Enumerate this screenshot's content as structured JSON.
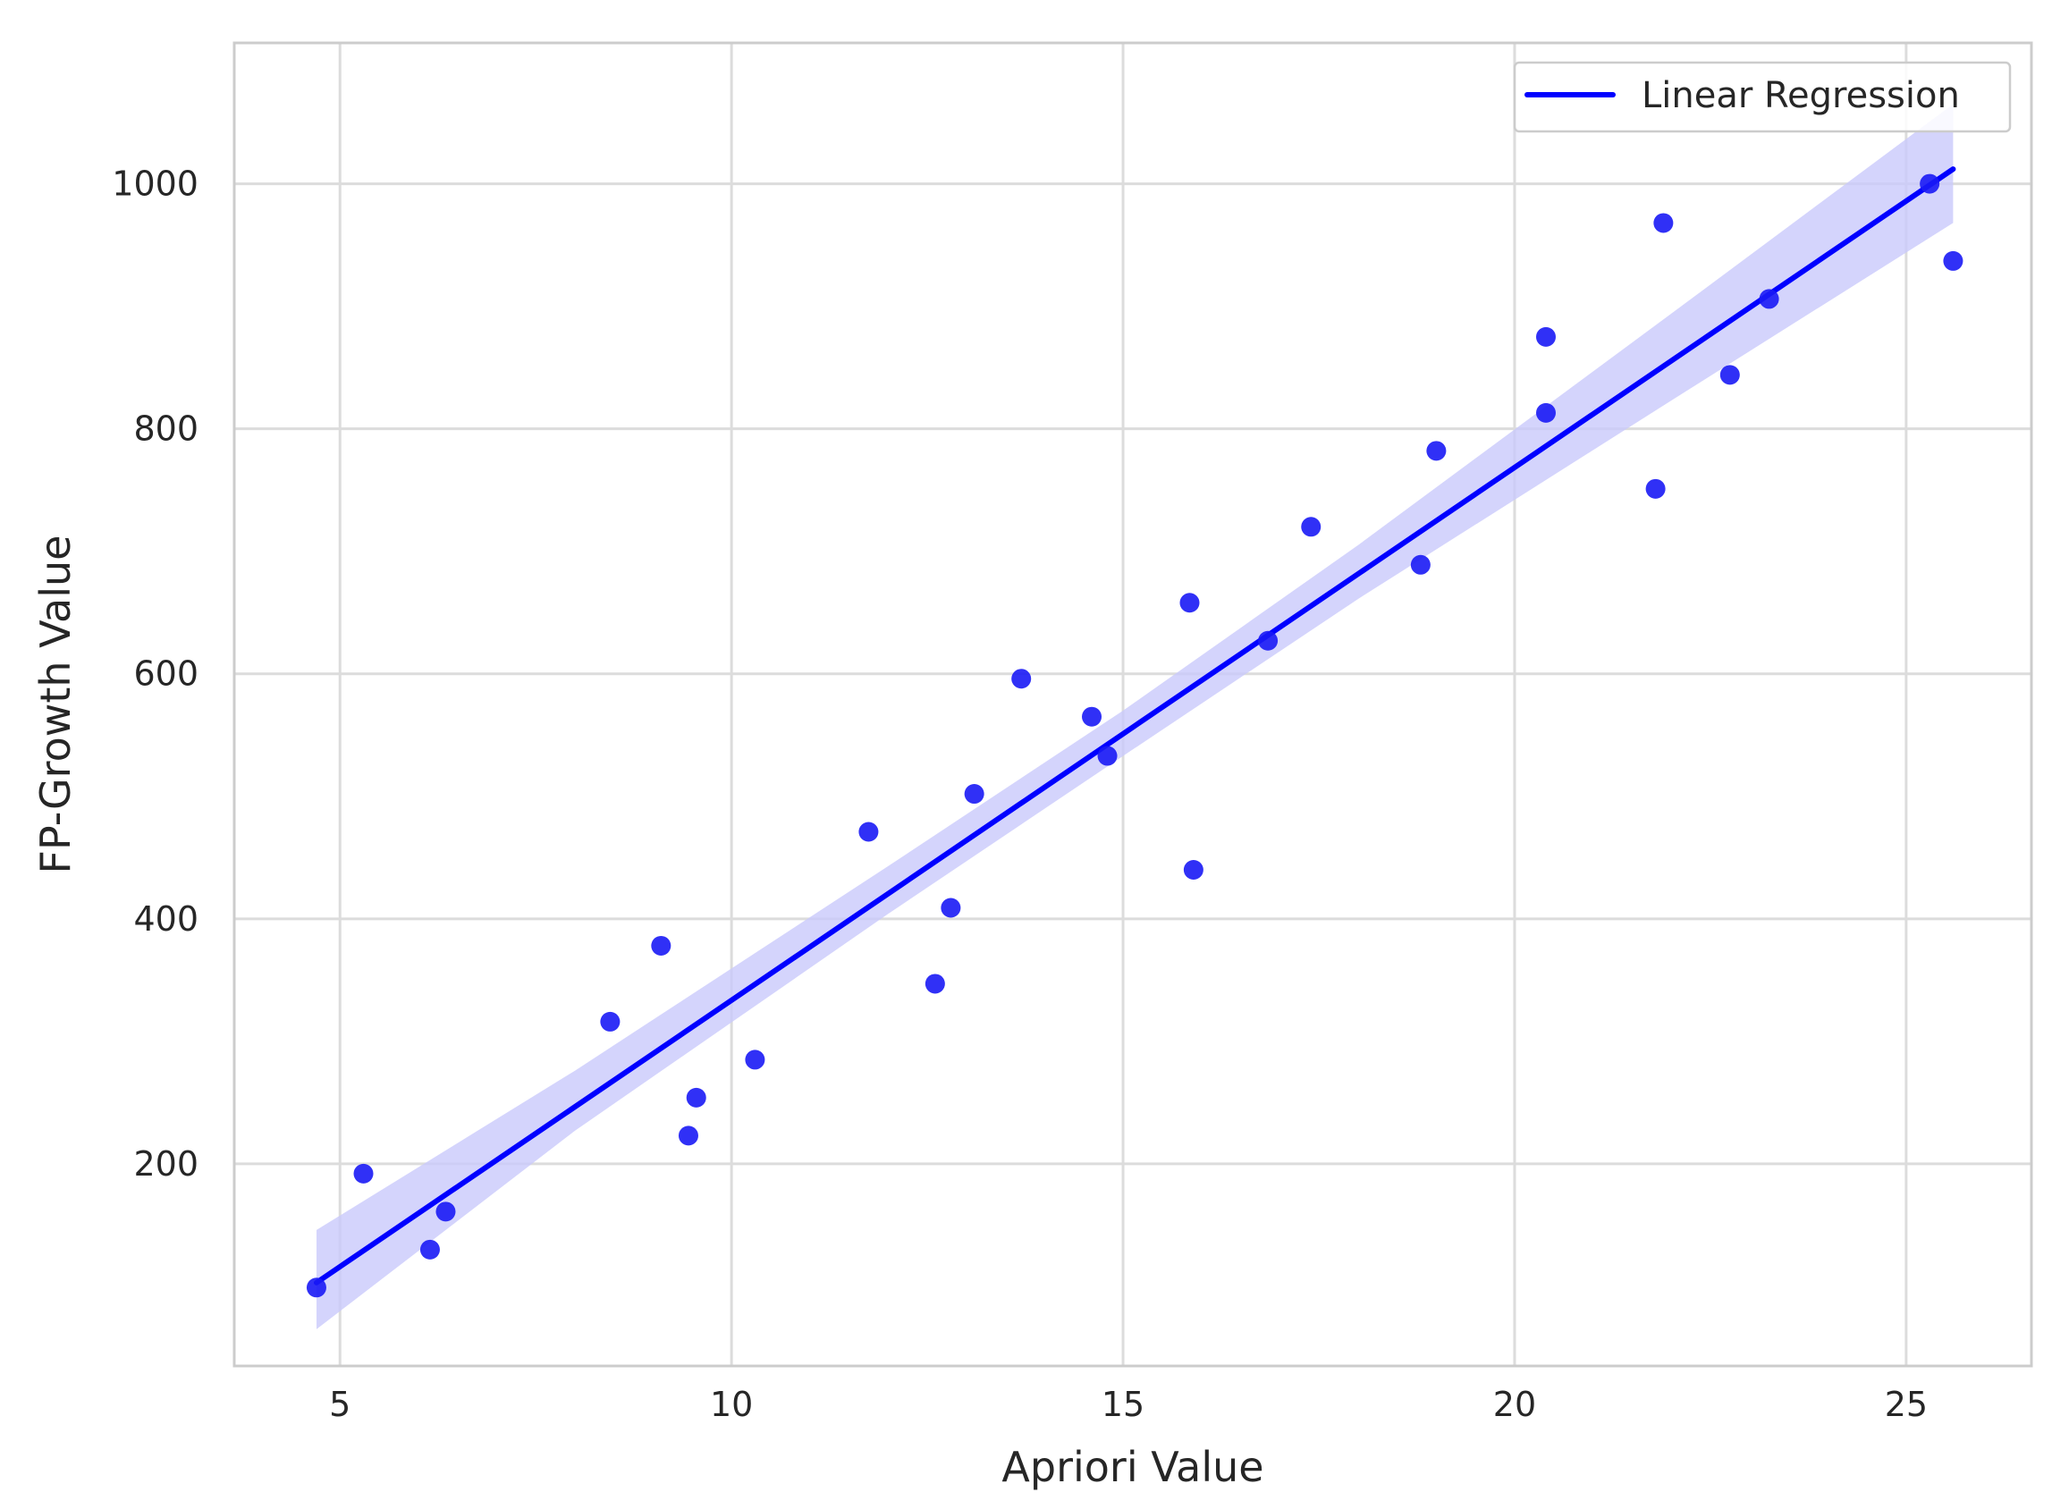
{
  "chart_data": {
    "type": "scatter",
    "title": "",
    "xlabel": "Apriori Value",
    "ylabel": "FP-Growth Value",
    "xlim": [
      3.65,
      26.6
    ],
    "ylim": [
      35,
      1115
    ],
    "xticks": [
      5,
      10,
      15,
      20,
      25
    ],
    "yticks": [
      200,
      400,
      600,
      800,
      1000
    ],
    "grid": true,
    "legend_position": "top-right",
    "colors": {
      "points": "#1a1af5",
      "line": "#0000ff",
      "band": "#c9c9fb",
      "grid": "#dcdcdc",
      "frame": "#cccccc",
      "text": "#262626"
    },
    "series": [
      {
        "type": "scatter",
        "x": [
          4.7,
          5.3,
          6.15,
          6.35,
          8.45,
          9.1,
          9.45,
          9.55,
          10.3,
          11.75,
          12.6,
          12.8,
          13.1,
          13.7,
          14.6,
          14.8,
          15.85,
          15.9,
          16.85,
          17.4,
          18.8,
          19.0,
          20.4,
          20.4,
          21.8,
          21.9,
          22.75,
          23.25,
          25.3,
          25.6
        ],
        "y": [
          99,
          192,
          130,
          161,
          316,
          378,
          223,
          254,
          285,
          471,
          347,
          409,
          502,
          596,
          565,
          533,
          658,
          440,
          627,
          720,
          689,
          782,
          813,
          875,
          751,
          968,
          844,
          906,
          1000,
          937
        ]
      },
      {
        "name": "Linear Regression",
        "type": "line",
        "x": [
          4.7,
          25.6
        ],
        "y": [
          103,
          1012
        ]
      }
    ],
    "confidence_band": {
      "x": [
        4.7,
        8.0,
        12.0,
        15.0,
        18.0,
        22.0,
        25.6
      ],
      "upper": [
        146,
        276,
        443,
        570,
        705,
        894,
        1065
      ],
      "lower": [
        65,
        227,
        404,
        533,
        661,
        823,
        968
      ]
    }
  }
}
